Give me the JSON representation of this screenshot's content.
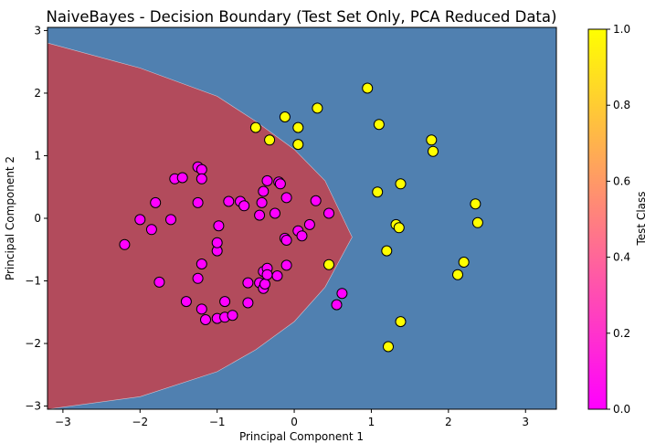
{
  "chart_data": {
    "type": "scatter",
    "title": "NaiveBayes - Decision Boundary (Test Set Only, PCA Reduced Data)",
    "xlabel": "Principal Component 1",
    "ylabel": "Principal Component 2",
    "xlim": [
      -3.2,
      3.4
    ],
    "ylim": [
      -3.05,
      3.05
    ],
    "xticks": [
      -3,
      -2,
      -1,
      0,
      1,
      2,
      3
    ],
    "yticks": [
      -3,
      -2,
      -1,
      0,
      1,
      2,
      3
    ],
    "background_color": "#5080b0",
    "region_color": "#b24b5c",
    "region_boundary": {
      "description": "parabola opening left, vertex near (0.75, -0.3)",
      "vertex": [
        0.75,
        -0.3
      ],
      "points_upper": [
        [
          -3.2,
          2.8
        ],
        [
          -2.0,
          2.4
        ],
        [
          -1.0,
          1.95
        ],
        [
          -0.5,
          1.55
        ],
        [
          0.0,
          1.1
        ],
        [
          0.4,
          0.6
        ],
        [
          0.75,
          -0.3
        ]
      ],
      "points_lower": [
        [
          0.75,
          -0.3
        ],
        [
          0.4,
          -1.1
        ],
        [
          0.0,
          -1.65
        ],
        [
          -0.5,
          -2.1
        ],
        [
          -1.0,
          -2.45
        ],
        [
          -2.0,
          -2.85
        ],
        [
          -3.2,
          -3.05
        ]
      ]
    },
    "colorbar": {
      "label": "Test Class",
      "ticks": [
        0.0,
        0.2,
        0.4,
        0.6,
        0.8,
        1.0
      ],
      "tick_labels": [
        "0.0",
        "0.2",
        "0.4",
        "0.6",
        "0.8",
        "1.0"
      ],
      "colormap": "spring",
      "color_low": "#ff00ff",
      "color_high": "#ffff00"
    },
    "series": [
      {
        "class": 0,
        "color": "#ff00ff",
        "points": [
          [
            -2.2,
            -0.42
          ],
          [
            -2.0,
            -0.02
          ],
          [
            -1.85,
            -0.18
          ],
          [
            -1.8,
            0.25
          ],
          [
            -1.75,
            -1.02
          ],
          [
            -1.6,
            -0.02
          ],
          [
            -1.55,
            0.63
          ],
          [
            -1.45,
            0.65
          ],
          [
            -1.4,
            -1.33
          ],
          [
            -1.25,
            0.82
          ],
          [
            -1.2,
            0.78
          ],
          [
            -1.2,
            0.63
          ],
          [
            -1.25,
            0.25
          ],
          [
            -1.2,
            -0.73
          ],
          [
            -1.25,
            -0.96
          ],
          [
            -1.2,
            -1.45
          ],
          [
            -1.15,
            -1.62
          ],
          [
            -1.0,
            -1.6
          ],
          [
            -1.0,
            -0.52
          ],
          [
            -1.0,
            -0.39
          ],
          [
            -0.98,
            -0.12
          ],
          [
            -0.9,
            -1.58
          ],
          [
            -0.9,
            -1.33
          ],
          [
            -0.8,
            -1.55
          ],
          [
            -0.85,
            0.27
          ],
          [
            -0.7,
            0.27
          ],
          [
            -0.65,
            0.2
          ],
          [
            -0.6,
            -1.03
          ],
          [
            -0.6,
            -1.35
          ],
          [
            -0.45,
            0.05
          ],
          [
            -0.45,
            -1.03
          ],
          [
            -0.42,
            0.25
          ],
          [
            -0.4,
            0.43
          ],
          [
            -0.4,
            -0.85
          ],
          [
            -0.4,
            -1.12
          ],
          [
            -0.38,
            -1.05
          ],
          [
            -0.35,
            0.6
          ],
          [
            -0.35,
            -0.8
          ],
          [
            -0.35,
            -0.9
          ],
          [
            -0.25,
            0.08
          ],
          [
            -0.22,
            -0.92
          ],
          [
            -0.2,
            0.58
          ],
          [
            -0.18,
            0.55
          ],
          [
            -0.12,
            -0.32
          ],
          [
            -0.1,
            -0.35
          ],
          [
            -0.1,
            0.33
          ],
          [
            -0.1,
            -0.75
          ],
          [
            0.05,
            -0.2
          ],
          [
            0.1,
            -0.28
          ],
          [
            0.2,
            -0.1
          ],
          [
            0.28,
            0.28
          ],
          [
            0.45,
            0.08
          ],
          [
            0.55,
            -1.38
          ],
          [
            0.62,
            -1.2
          ]
        ]
      },
      {
        "class": 1,
        "color": "#ffff00",
        "points": [
          [
            -0.5,
            1.45
          ],
          [
            -0.32,
            1.25
          ],
          [
            -0.12,
            1.62
          ],
          [
            0.05,
            1.45
          ],
          [
            0.05,
            1.18
          ],
          [
            0.3,
            1.76
          ],
          [
            0.45,
            -0.74
          ],
          [
            0.95,
            2.08
          ],
          [
            1.1,
            1.5
          ],
          [
            1.08,
            0.42
          ],
          [
            1.2,
            -0.52
          ],
          [
            1.22,
            -2.05
          ],
          [
            1.32,
            -0.1
          ],
          [
            1.36,
            -0.15
          ],
          [
            1.38,
            0.55
          ],
          [
            1.38,
            -1.65
          ],
          [
            1.78,
            1.25
          ],
          [
            1.8,
            1.07
          ],
          [
            2.12,
            -0.9
          ],
          [
            2.2,
            -0.7
          ],
          [
            2.35,
            0.23
          ],
          [
            2.38,
            -0.07
          ]
        ]
      }
    ]
  }
}
